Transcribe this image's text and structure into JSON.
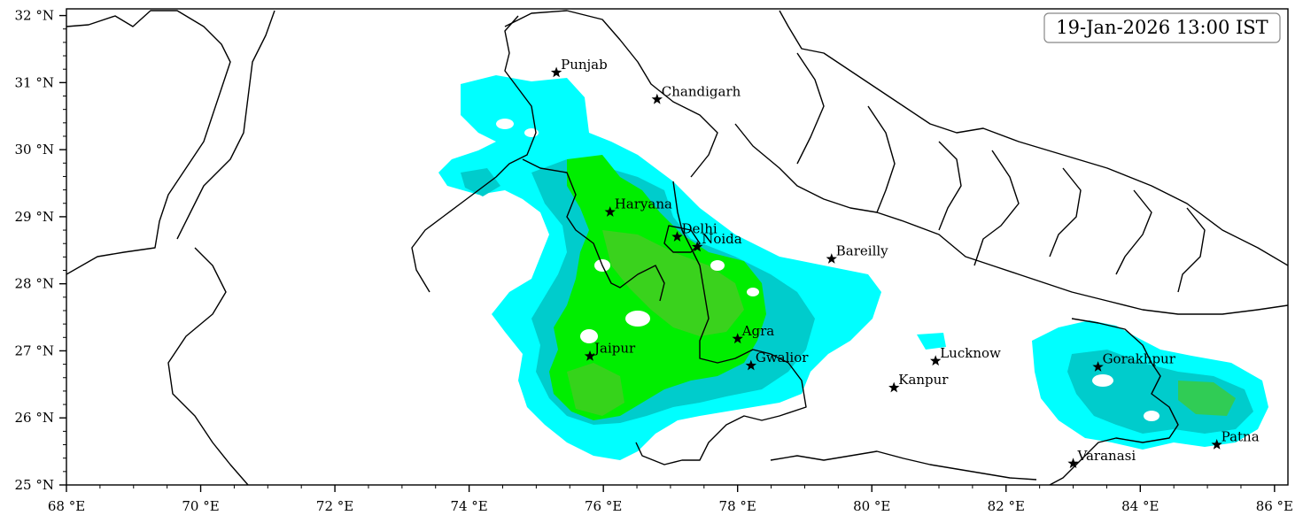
{
  "timestamp": "19-Jan-2026 13:00 IST",
  "map": {
    "lon_range": [
      68,
      86.2
    ],
    "lat_range": [
      25,
      32.1
    ],
    "x_ticks": [
      {
        "value": 68,
        "label": "68 °E"
      },
      {
        "value": 70,
        "label": "70 °E"
      },
      {
        "value": 72,
        "label": "72 °E"
      },
      {
        "value": 74,
        "label": "74 °E"
      },
      {
        "value": 76,
        "label": "76 °E"
      },
      {
        "value": 78,
        "label": "78 °E"
      },
      {
        "value": 80,
        "label": "80 °E"
      },
      {
        "value": 82,
        "label": "82 °E"
      },
      {
        "value": 84,
        "label": "84 °E"
      },
      {
        "value": 86,
        "label": "86 °E"
      }
    ],
    "y_ticks": [
      {
        "value": 25,
        "label": "25 °N"
      },
      {
        "value": 26,
        "label": "26 °N"
      },
      {
        "value": 27,
        "label": "27 °N"
      },
      {
        "value": 28,
        "label": "28 °N"
      },
      {
        "value": 29,
        "label": "29 °N"
      },
      {
        "value": 30,
        "label": "30 °N"
      },
      {
        "value": 31,
        "label": "31 °N"
      },
      {
        "value": 32,
        "label": "32 °N"
      }
    ],
    "colors": {
      "level1": "#00ffff",
      "level2": "#00cccc",
      "level3": "#00ee00",
      "level4": "#44cc22",
      "border": "#000000"
    },
    "marker_icon": "star-icon"
  },
  "cities": [
    {
      "name": "Punjab",
      "lon": 75.3,
      "lat": 31.15
    },
    {
      "name": "Chandigarh",
      "lon": 76.8,
      "lat": 30.75
    },
    {
      "name": "Haryana",
      "lon": 76.1,
      "lat": 29.07
    },
    {
      "name": "Delhi",
      "lon": 77.1,
      "lat": 28.7
    },
    {
      "name": "Noida",
      "lon": 77.4,
      "lat": 28.55
    },
    {
      "name": "Bareilly",
      "lon": 79.4,
      "lat": 28.37
    },
    {
      "name": "Agra",
      "lon": 78.0,
      "lat": 27.18
    },
    {
      "name": "Jaipur",
      "lon": 75.8,
      "lat": 26.92
    },
    {
      "name": "Gwalior",
      "lon": 78.2,
      "lat": 26.78
    },
    {
      "name": "Lucknow",
      "lon": 80.95,
      "lat": 26.85
    },
    {
      "name": "Kanpur",
      "lon": 80.33,
      "lat": 26.45
    },
    {
      "name": "Gorakhpur",
      "lon": 83.37,
      "lat": 26.76
    },
    {
      "name": "Varanasi",
      "lon": 83.0,
      "lat": 25.32
    },
    {
      "name": "Patna",
      "lon": 85.14,
      "lat": 25.6
    }
  ]
}
